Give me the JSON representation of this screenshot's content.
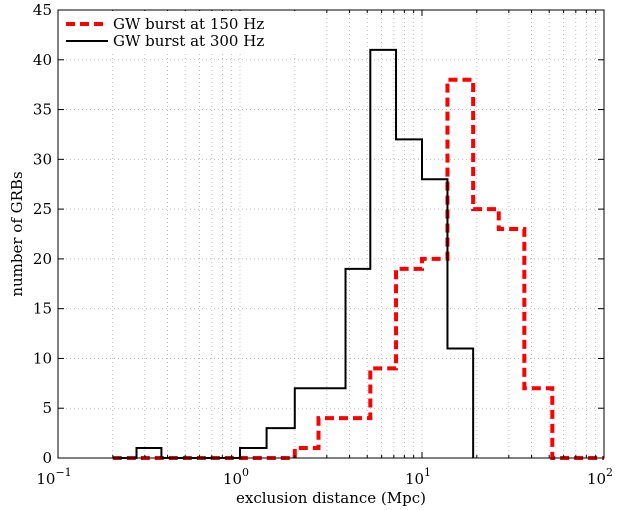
{
  "chart_data": {
    "type": "histogram",
    "xscale": "log",
    "xlim": [
      0.1,
      100
    ],
    "ylim": [
      0,
      45
    ],
    "xticks": [
      {
        "base": "10",
        "exp": "−1",
        "value": 0.1
      },
      {
        "base": "10",
        "exp": "0",
        "value": 1
      },
      {
        "base": "10",
        "exp": "1",
        "value": 10
      },
      {
        "base": "10",
        "exp": "2",
        "value": 100
      }
    ],
    "yticks": [
      0,
      5,
      10,
      15,
      20,
      25,
      30,
      35,
      40,
      45
    ],
    "grid": true,
    "xlabel": "exclusion distance (Mpc)",
    "ylabel": "number of GRBs",
    "legend_position": "top-left",
    "series": [
      {
        "name": "GW burst at 150 Hz",
        "color": "#ff0000",
        "style": "dashed",
        "bin_edges": [
          0.2,
          0.27,
          0.37,
          0.5,
          0.7,
          1.0,
          1.4,
          2.0,
          2.7,
          3.8,
          5.2,
          7.2,
          10.0,
          13.8,
          19.1,
          26.4,
          36.5,
          52.0,
          100
        ],
        "counts": [
          0,
          0,
          0,
          0,
          0,
          0,
          0,
          1,
          4,
          4,
          9,
          19,
          20,
          38,
          25,
          23,
          7,
          0
        ]
      },
      {
        "name": "GW burst at 300 Hz",
        "color": "#000000",
        "style": "solid",
        "bin_edges": [
          0.2,
          0.27,
          0.37,
          0.5,
          0.7,
          1.0,
          1.4,
          2.0,
          2.7,
          3.8,
          5.2,
          7.2,
          10.0,
          13.8,
          19.1
        ],
        "counts": [
          0,
          1,
          0,
          0,
          0,
          1,
          3,
          7,
          7,
          19,
          41,
          32,
          28,
          11
        ]
      }
    ]
  }
}
